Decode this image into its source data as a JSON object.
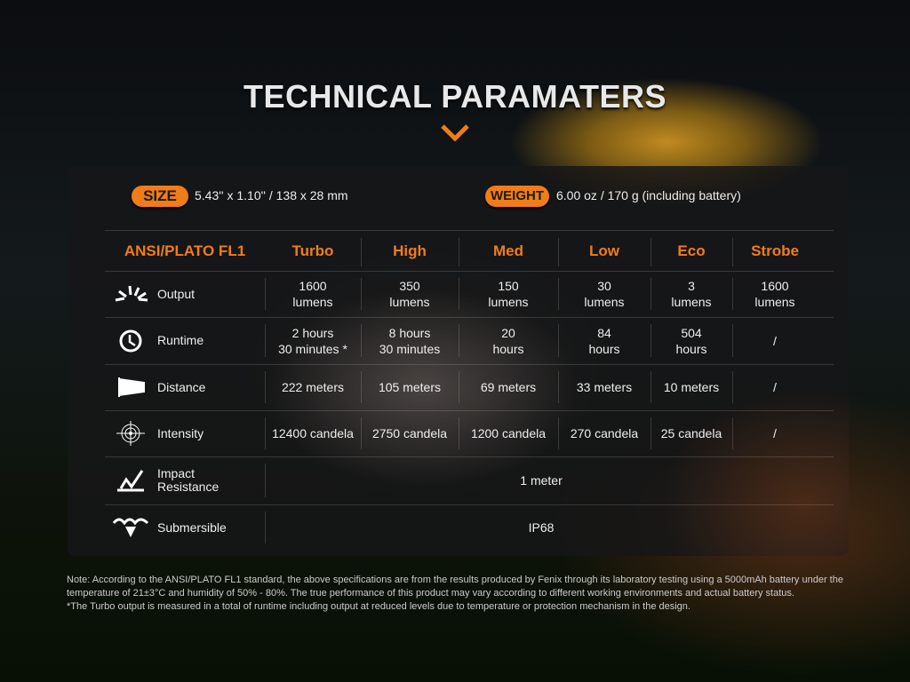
{
  "title": "TECHNICAL PARAMATERS",
  "size": {
    "label": "SIZE",
    "value": "5.43'' x 1.10'' / 138 x 28 mm"
  },
  "weight": {
    "label": "WEIGHT",
    "value": "6.00 oz / 170 g (including battery)"
  },
  "table": {
    "standard": "ANSI/PLATO FL1",
    "modes": [
      "Turbo",
      "High",
      "Med",
      "Low",
      "Eco",
      "Strobe"
    ],
    "rows": [
      {
        "label": "Output",
        "icon": "sunburst-icon",
        "values": [
          "1600\nlumens",
          "350\nlumens",
          "150\nlumens",
          "30\nlumens",
          "3\nlumens",
          "1600\nlumens"
        ]
      },
      {
        "label": "Runtime",
        "icon": "clock-icon",
        "values": [
          "2 hours\n30 minutes *",
          "8 hours\n30 minutes",
          "20\nhours",
          "84\nhours",
          "504\nhours",
          "/"
        ]
      },
      {
        "label": "Distance",
        "icon": "beam-distance-icon",
        "values": [
          "222 meters",
          "105 meters",
          "69 meters",
          "33 meters",
          "10 meters",
          "/"
        ]
      },
      {
        "label": "Intensity",
        "icon": "target-icon",
        "values": [
          "12400 candela",
          "2750 candela",
          "1200 candela",
          "270 candela",
          "25 candela",
          "/"
        ]
      },
      {
        "label": "Impact\nResistance",
        "icon": "impact-icon",
        "merged": "1 meter"
      },
      {
        "label": "Submersible",
        "icon": "water-icon",
        "merged": "IP68"
      }
    ]
  },
  "notes": [
    "Note: According to the ANSI/PLATO FL1 standard, the above specifications are from the results produced by Fenix through its laboratory testing using a 5000mAh battery under the temperature of 21±3°C and humidity of 50% - 80%. The true performance of this product may vary according to different working environments and actual battery status.",
    "*The Turbo output is measured in a total of runtime including output at reduced levels due to temperature or protection mechanism in the design."
  ],
  "colors": {
    "accent": "#f07d18"
  }
}
